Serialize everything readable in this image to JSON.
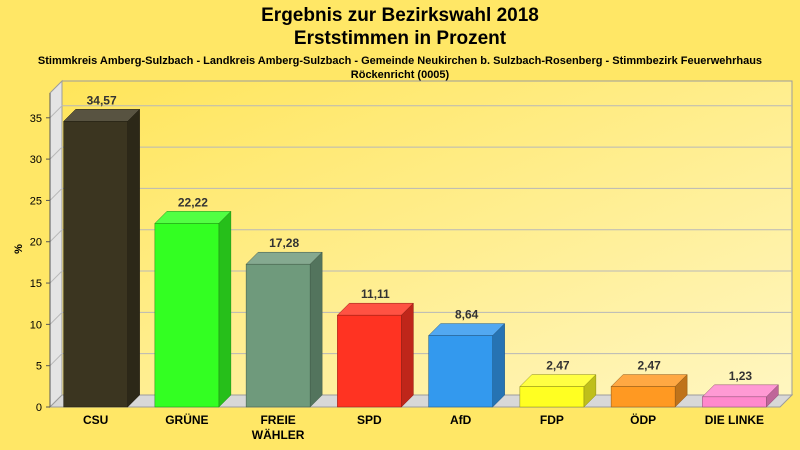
{
  "chart_data": {
    "type": "bar",
    "title": "Ergebnis zur Bezirkswahl 2018",
    "title2": "Erststimmen in Prozent",
    "subtitle": "Stimmkreis Amberg-Sulzbach - Landkreis Amberg-Sulzbach - Gemeinde Neukirchen b. Sulzbach-Rosenberg - Stimmbezirk Feuerwehrhaus",
    "subtitle2": "Röckenricht (0005)",
    "ylabel": "%",
    "ylim": [
      0,
      38
    ],
    "yticks": [
      0,
      5,
      10,
      15,
      20,
      25,
      30,
      35
    ],
    "categories": [
      [
        "CSU"
      ],
      [
        "GRÜNE"
      ],
      [
        "FREIE",
        "WÄHLER"
      ],
      [
        "SPD"
      ],
      [
        "AfD"
      ],
      [
        "FDP"
      ],
      [
        "ÖDP"
      ],
      [
        "DIE LINKE"
      ]
    ],
    "values": [
      34.57,
      22.22,
      17.28,
      11.11,
      8.64,
      2.47,
      2.47,
      1.23
    ],
    "value_labels": [
      "34,57",
      "22,22",
      "17,28",
      "11,11",
      "8,64",
      "2,47",
      "2,47",
      "1,23"
    ],
    "colors": [
      "#3b3520",
      "#33ff22",
      "#6f9a7c",
      "#ff3322",
      "#3399ee",
      "#ffff22",
      "#ff9922",
      "#ff88cc"
    ],
    "grid": true
  }
}
